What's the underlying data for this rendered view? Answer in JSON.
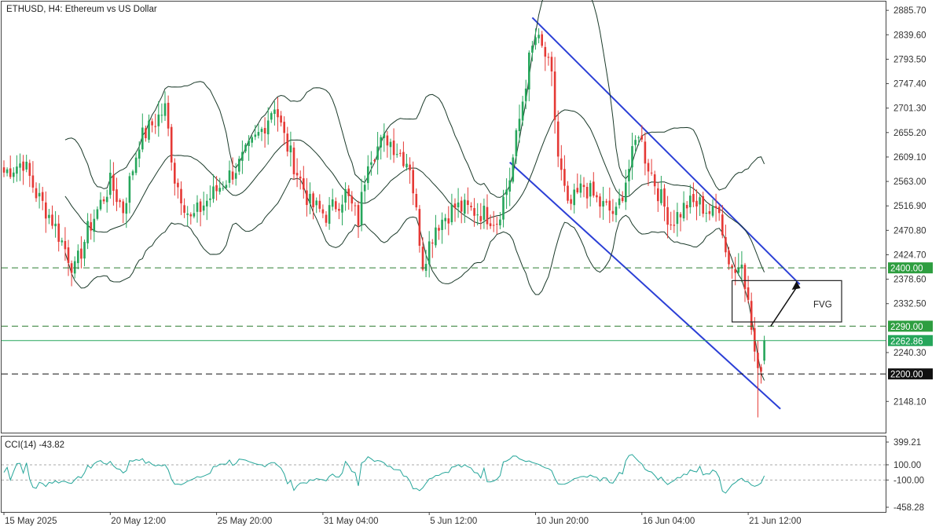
{
  "chart_data": [
    {
      "type": "candlestick",
      "title": "ETHUSD, H4:  Ethereum vs US Dollar",
      "y_ticks": [
        "2885.70",
        "2839.60",
        "2793.50",
        "2747.40",
        "2701.30",
        "2655.20",
        "2609.10",
        "2563.00",
        "2516.90",
        "2470.80",
        "2424.70",
        "2378.60",
        "2332.50",
        "2240.30",
        "2148.10"
      ],
      "ylim": [
        2112.2,
        2890.3
      ],
      "x_ticks": [
        {
          "i": 0,
          "label": "15 May 2025"
        },
        {
          "i": 33,
          "label": "20 May 12:00"
        },
        {
          "i": 66,
          "label": "25 May 20:00"
        },
        {
          "i": 99,
          "label": "31 May 04:00"
        },
        {
          "i": 132,
          "label": "5 Jun 12:00"
        },
        {
          "i": 165,
          "label": "10 Jun 20:00"
        },
        {
          "i": 198,
          "label": "16 Jun 04:00"
        },
        {
          "i": 231,
          "label": "21 Jun 12:00"
        }
      ],
      "levels": [
        {
          "value": 2400.0,
          "label": "2400.00",
          "color": "#2e7d32",
          "style": "dashed",
          "tag_bg": "#2e9e40"
        },
        {
          "value": 2290.0,
          "label": "2290.00",
          "color": "#2e7d32",
          "style": "dashed",
          "tag_bg": "#2e9e40"
        },
        {
          "value": 2262.86,
          "label": "2262.86",
          "color": "#26a65b",
          "style": "solid",
          "tag_bg": "#26a65b"
        },
        {
          "value": 2200.0,
          "label": "2200.00",
          "color": "#111111",
          "style": "dashed",
          "tag_bg": "#111111"
        }
      ],
      "annotations": {
        "fvg": {
          "label": "FVG",
          "i0": 226,
          "i1": 260,
          "top": 2376,
          "bottom": 2298
        },
        "channel_upper": {
          "from": {
            "i": 164,
            "v": 2872
          },
          "to": {
            "i": 247,
            "v": 2369
          }
        },
        "channel_lower": {
          "from": {
            "i": 157,
            "v": 2599
          },
          "to": {
            "i": 241,
            "v": 2134
          }
        },
        "arrow": {
          "from": {
            "i": 238,
            "v": 2290
          },
          "to": {
            "i": 246,
            "v": 2375
          }
        }
      },
      "candles": {
        "count": 237,
        "anchors": [
          [
            0,
            2580
          ],
          [
            6,
            2600
          ],
          [
            10,
            2540
          ],
          [
            15,
            2490
          ],
          [
            22,
            2395
          ],
          [
            26,
            2470
          ],
          [
            33,
            2560
          ],
          [
            37,
            2510
          ],
          [
            42,
            2640
          ],
          [
            50,
            2700
          ],
          [
            53,
            2570
          ],
          [
            58,
            2490
          ],
          [
            62,
            2520
          ],
          [
            68,
            2560
          ],
          [
            73,
            2595
          ],
          [
            80,
            2660
          ],
          [
            84,
            2710
          ],
          [
            87,
            2645
          ],
          [
            91,
            2580
          ],
          [
            95,
            2520
          ],
          [
            100,
            2500
          ],
          [
            106,
            2540
          ],
          [
            110,
            2490
          ],
          [
            113,
            2610
          ],
          [
            119,
            2645
          ],
          [
            126,
            2595
          ],
          [
            130,
            2410
          ],
          [
            134,
            2480
          ],
          [
            140,
            2515
          ],
          [
            148,
            2505
          ],
          [
            153,
            2490
          ],
          [
            157,
            2570
          ],
          [
            160,
            2680
          ],
          [
            163,
            2790
          ],
          [
            165,
            2835
          ],
          [
            168,
            2800
          ],
          [
            170,
            2755
          ],
          [
            172,
            2610
          ],
          [
            175,
            2510
          ],
          [
            180,
            2555
          ],
          [
            185,
            2520
          ],
          [
            190,
            2500
          ],
          [
            195,
            2610
          ],
          [
            197,
            2660
          ],
          [
            199,
            2610
          ],
          [
            203,
            2545
          ],
          [
            207,
            2485
          ],
          [
            212,
            2520
          ],
          [
            216,
            2520
          ],
          [
            220,
            2500
          ],
          [
            222,
            2520
          ],
          [
            224,
            2430
          ],
          [
            227,
            2390
          ],
          [
            229,
            2425
          ],
          [
            231,
            2330
          ],
          [
            233,
            2240
          ],
          [
            234,
            2195
          ],
          [
            235,
            2220
          ],
          [
            236,
            2262.86
          ]
        ],
        "volatility": 0.5,
        "bullish_color": "#26a65b",
        "bearish_color": "#e53935"
      },
      "bollinger": {
        "period": 20,
        "stddev": 2,
        "color": "#1b3a2a"
      }
    },
    {
      "type": "line",
      "title": "CCI(14) -43.82",
      "y_ticks": [
        "399.21",
        "100.00",
        "-100.00",
        "-458.28"
      ],
      "ylim": [
        -458.28,
        399.21
      ],
      "levels": [
        100,
        -100
      ],
      "series": [
        {
          "name": "CCI(14)",
          "color": "#26a69a"
        }
      ]
    }
  ]
}
